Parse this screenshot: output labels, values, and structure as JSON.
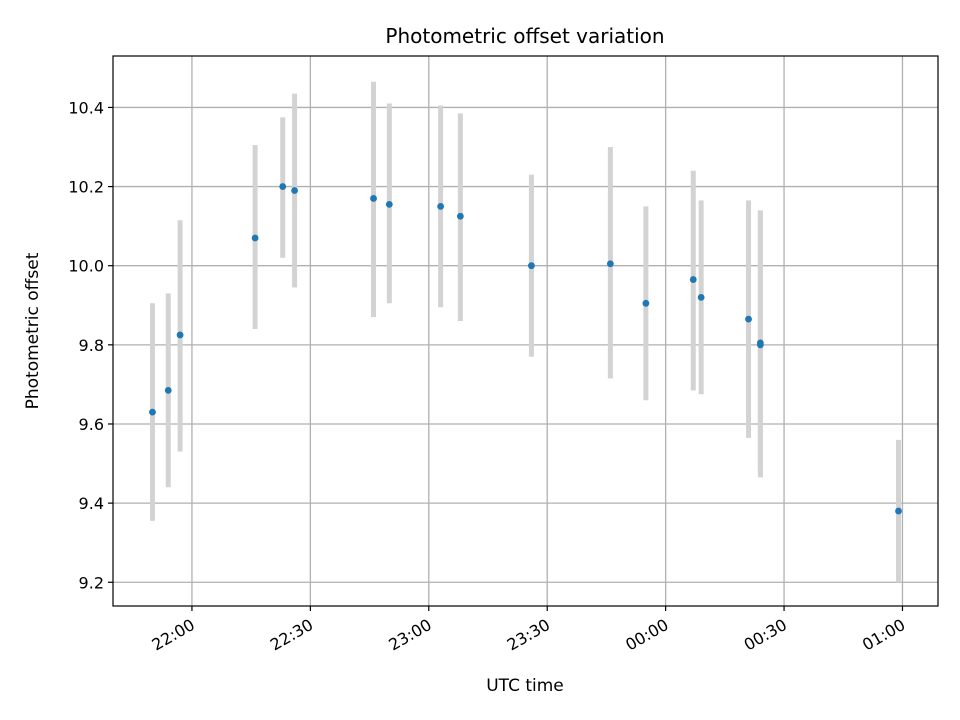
{
  "chart_data": {
    "type": "scatter",
    "title": "Photometric offset variation",
    "xlabel": "UTC time",
    "ylabel": "Photometric offset",
    "ylim": [
      9.14,
      10.53
    ],
    "xlim": [
      "21:40",
      "01:09"
    ],
    "x_unit": "UTC time",
    "grid": true,
    "x_ticks": [
      "22:00",
      "22:30",
      "23:00",
      "23:30",
      "00:00",
      "00:30",
      "01:00"
    ],
    "y_ticks": [
      "9.2",
      "9.4",
      "9.6",
      "9.8",
      "10.0",
      "10.2",
      "10.4"
    ],
    "y_tick_values": [
      9.2,
      9.4,
      9.6,
      9.8,
      10.0,
      10.2,
      10.4
    ],
    "colors": {
      "points": "#1f77b4",
      "error_bars": "#d3d3d3",
      "grid": "#b0b0b0"
    },
    "series": [
      {
        "points": [
          {
            "x": "21:50",
            "y": 9.63,
            "ylow": 9.355,
            "yhigh": 9.905
          },
          {
            "x": "21:54",
            "y": 9.685,
            "ylow": 9.44,
            "yhigh": 9.93
          },
          {
            "x": "21:57",
            "y": 9.825,
            "ylow": 9.53,
            "yhigh": 10.115
          },
          {
            "x": "22:16",
            "y": 10.07,
            "ylow": 9.84,
            "yhigh": 10.305
          },
          {
            "x": "22:23",
            "y": 10.2,
            "ylow": 10.02,
            "yhigh": 10.375
          },
          {
            "x": "22:26",
            "y": 10.19,
            "ylow": 9.945,
            "yhigh": 10.435
          },
          {
            "x": "22:46",
            "y": 10.17,
            "ylow": 9.87,
            "yhigh": 10.465
          },
          {
            "x": "22:50",
            "y": 10.155,
            "ylow": 9.905,
            "yhigh": 10.41
          },
          {
            "x": "23:03",
            "y": 10.15,
            "ylow": 9.895,
            "yhigh": 10.405
          },
          {
            "x": "23:08",
            "y": 10.125,
            "ylow": 9.86,
            "yhigh": 10.385
          },
          {
            "x": "23:26",
            "y": 10.0,
            "ylow": 9.77,
            "yhigh": 10.23
          },
          {
            "x": "23:46",
            "y": 10.005,
            "ylow": 9.715,
            "yhigh": 10.3
          },
          {
            "x": "23:55",
            "y": 9.905,
            "ylow": 9.66,
            "yhigh": 10.15
          },
          {
            "x": "00:07",
            "y": 9.965,
            "ylow": 9.685,
            "yhigh": 10.24
          },
          {
            "x": "00:09",
            "y": 9.92,
            "ylow": 9.675,
            "yhigh": 10.165
          },
          {
            "x": "00:21",
            "y": 9.865,
            "ylow": 9.565,
            "yhigh": 10.165
          },
          {
            "x": "00:24",
            "y": 9.805,
            "ylow": 9.485,
            "yhigh": 10.13
          },
          {
            "x": "00:24",
            "y": 9.8,
            "ylow": 9.465,
            "yhigh": 10.14
          },
          {
            "x": "00:59",
            "y": 9.38,
            "ylow": 9.2,
            "yhigh": 9.56
          }
        ]
      }
    ]
  }
}
